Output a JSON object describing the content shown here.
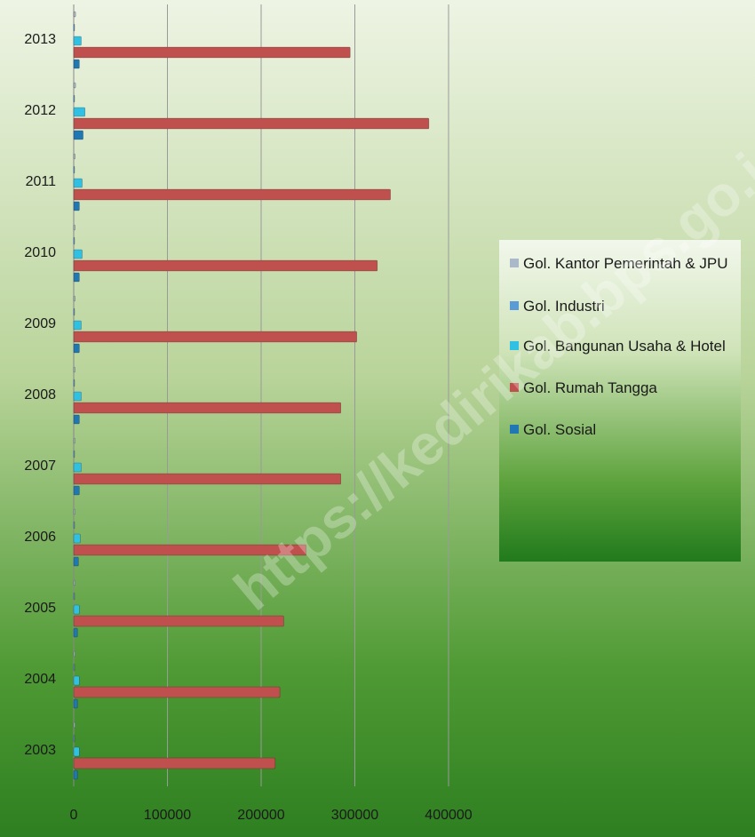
{
  "chart_data": {
    "type": "hbar",
    "categories": [
      "2003",
      "2004",
      "2005",
      "2006",
      "2007",
      "2008",
      "2009",
      "2010",
      "2011",
      "2012",
      "2013"
    ],
    "series": [
      {
        "name": "Gol. Kantor Pemerintah & JPU",
        "color": "#a9b9c9",
        "values": [
          1500,
          1500,
          1500,
          1500,
          1500,
          1500,
          1500,
          1500,
          1500,
          2000,
          2000
        ]
      },
      {
        "name": "Gol. Industri",
        "color": "#5b9bd5",
        "values": [
          500,
          500,
          500,
          500,
          500,
          500,
          500,
          500,
          500,
          600,
          600
        ]
      },
      {
        "name": "Gol. Bangunan Usaha & Hotel",
        "color": "#2fc0e4",
        "values": [
          6000,
          6000,
          6000,
          7000,
          8000,
          8000,
          8000,
          9000,
          9000,
          12000,
          8000
        ]
      },
      {
        "name": "Gol. Rumah Tangga",
        "color": "#c0504d",
        "values": [
          215000,
          220000,
          224000,
          248000,
          285000,
          285000,
          302000,
          324000,
          338000,
          379000,
          295000
        ]
      },
      {
        "name": "Gol. Sosial",
        "color": "#1f78b4",
        "values": [
          4000,
          4000,
          4000,
          5000,
          6000,
          6000,
          6000,
          6000,
          6000,
          10000,
          6000
        ]
      }
    ],
    "xlim": [
      0,
      400000
    ],
    "xticks": [
      0,
      100000,
      200000,
      300000,
      400000
    ],
    "grid": true
  },
  "watermark": "https://kedirikab.bps.go.id"
}
